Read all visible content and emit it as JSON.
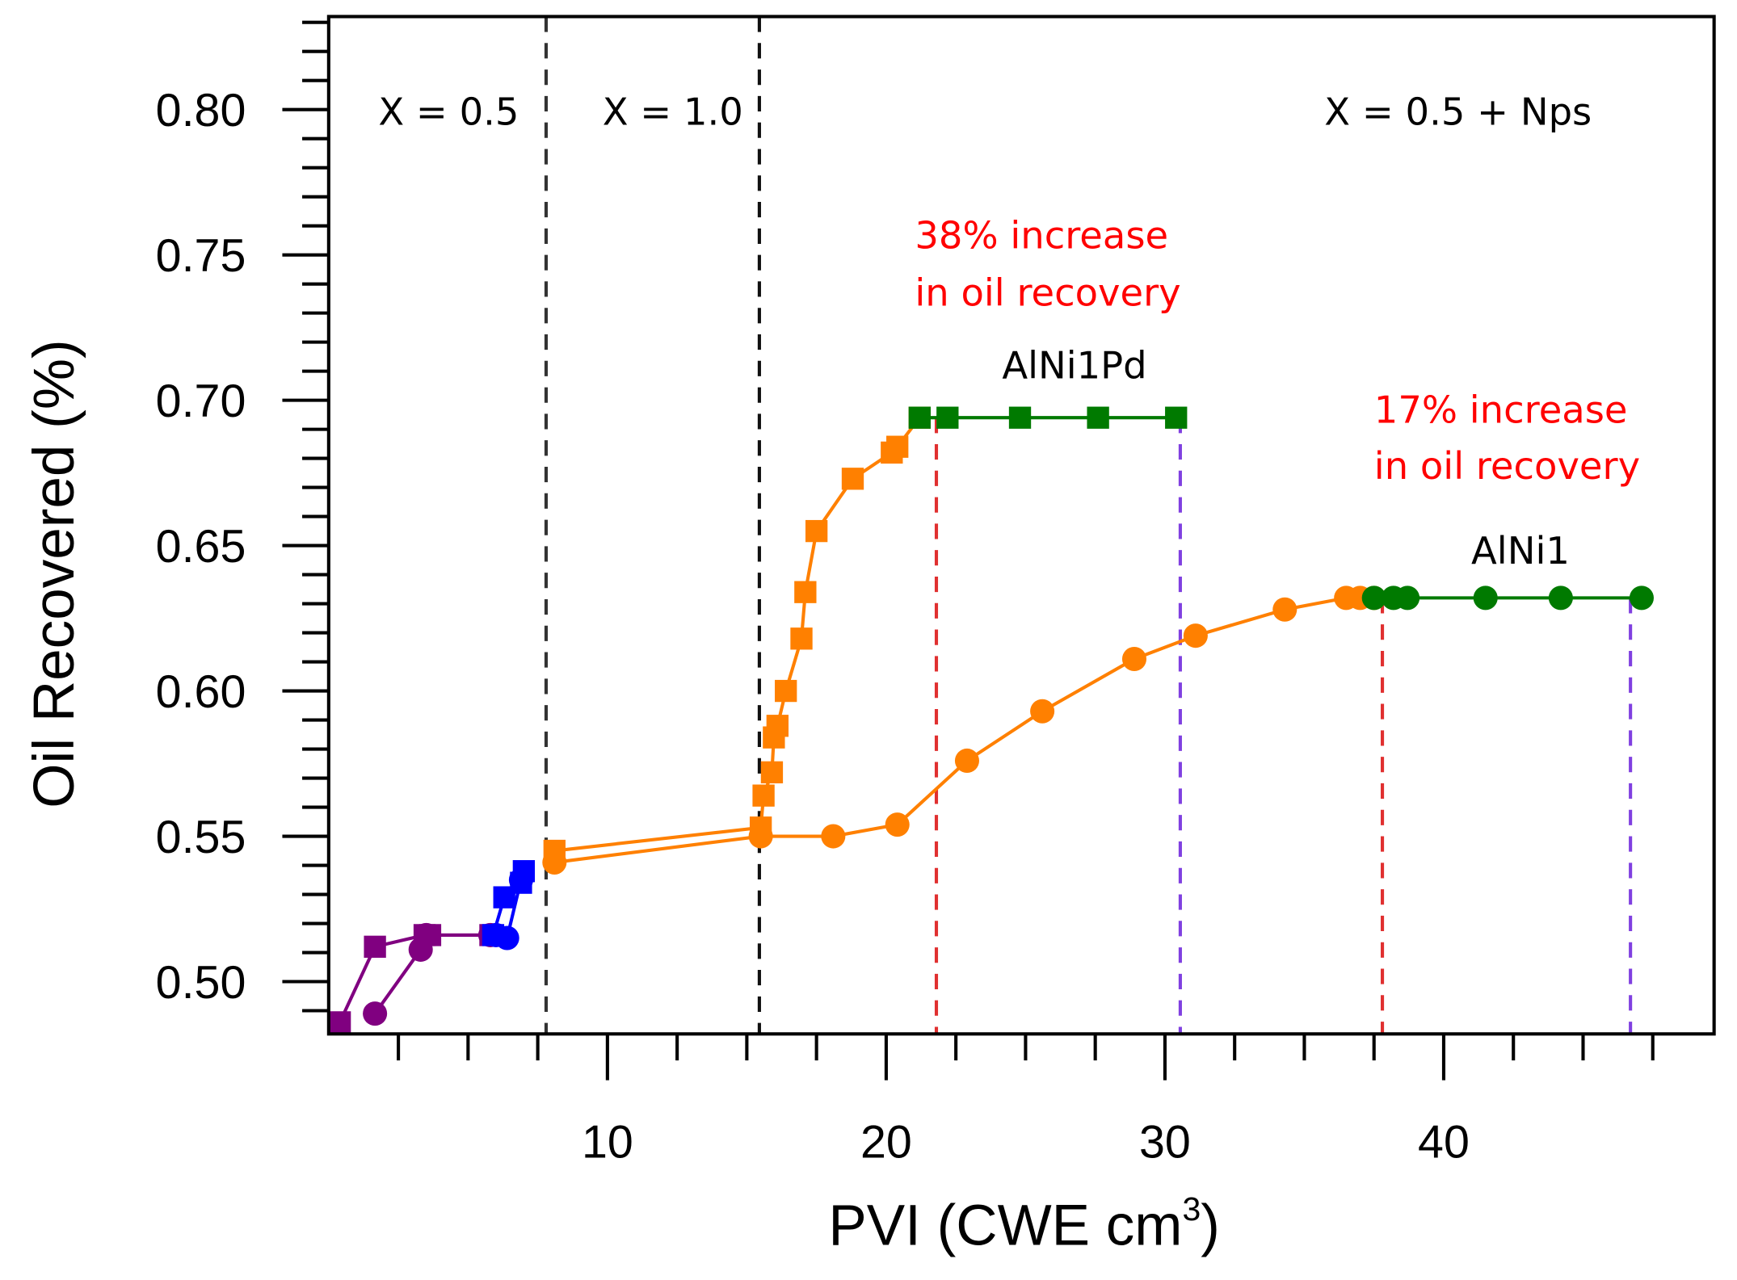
{
  "chart_data": {
    "type": "line",
    "xlabel": "PVI (CWE cm",
    "xlabel_sup": "3",
    "xlabel_close": ")",
    "ylabel": "Oil Recovered (%)",
    "xlim": [
      0,
      49.7
    ],
    "ylim": [
      0.482,
      0.832
    ],
    "xticks": [
      10,
      20,
      30,
      40
    ],
    "xtick_labels": [
      "10",
      "20",
      "30",
      "40"
    ],
    "yticks": [
      0.5,
      0.55,
      0.6,
      0.65,
      0.7,
      0.75,
      0.8
    ],
    "ytick_labels": [
      "0.50",
      "0.55",
      "0.60",
      "0.65",
      "0.70",
      "0.75",
      "0.80"
    ],
    "grid": false,
    "colors": {
      "purple": "#800080",
      "blue": "#0000ff",
      "orange": "#ff8000",
      "green": "#007a00",
      "red_text": "#ff0000",
      "red_line": "#e03030",
      "violet_line": "#8040e0"
    },
    "series": [
      {
        "marker": "square",
        "color": "#800080",
        "x": [
          0.4,
          1.66,
          3.44,
          3.64,
          5.8
        ],
        "y": [
          0.486,
          0.512,
          0.516,
          0.516,
          0.516
        ]
      },
      {
        "marker": "circle",
        "color": "#800080",
        "x": [
          1.66,
          3.3,
          3.5,
          5.8
        ],
        "y": [
          0.489,
          0.511,
          0.516,
          0.516
        ]
      },
      {
        "marker": "square",
        "color": "#0000ff",
        "x": [
          5.9,
          6.3,
          6.9,
          7.0
        ],
        "y": [
          0.516,
          0.529,
          0.534,
          0.538
        ]
      },
      {
        "marker": "circle",
        "color": "#0000ff",
        "x": [
          6.0,
          6.4,
          6.9
        ],
        "y": [
          0.516,
          0.515,
          0.535
        ]
      },
      {
        "marker": "square",
        "color": "#ff8000",
        "x": [
          8.1,
          15.5,
          15.6,
          15.9,
          15.97,
          16.1,
          16.4,
          16.96,
          17.1,
          17.5,
          18.8,
          20.2,
          20.4,
          21.2
        ],
        "y": [
          0.545,
          0.553,
          0.564,
          0.572,
          0.584,
          0.588,
          0.6,
          0.618,
          0.634,
          0.655,
          0.673,
          0.682,
          0.684,
          0.694
        ]
      },
      {
        "marker": "square",
        "color": "#007a00",
        "x": [
          21.2,
          22.2,
          24.8,
          27.6,
          30.4
        ],
        "y": [
          0.694,
          0.694,
          0.694,
          0.694,
          0.694
        ]
      },
      {
        "marker": "circle",
        "color": "#ff8000",
        "x": [
          8.1,
          15.5,
          18.1,
          20.4,
          22.9,
          25.6,
          28.9,
          31.1,
          34.3,
          36.5,
          37.0,
          37.5
        ],
        "y": [
          0.541,
          0.55,
          0.55,
          0.554,
          0.576,
          0.593,
          0.611,
          0.619,
          0.628,
          0.632,
          0.632,
          0.632
        ]
      },
      {
        "marker": "circle",
        "color": "#007a00",
        "x": [
          37.5,
          38.2,
          38.7,
          41.5,
          44.2,
          47.1
        ],
        "y": [
          0.632,
          0.632,
          0.632,
          0.632,
          0.632,
          0.632
        ]
      }
    ],
    "vlines": [
      {
        "x": 7.8,
        "color": "#333333"
      },
      {
        "x": 15.45,
        "color": "#111111"
      },
      {
        "x": 21.8,
        "color": "#e03030",
        "ymax": 0.694
      },
      {
        "x": 30.55,
        "color": "#8040e0",
        "ymax": 0.694
      },
      {
        "x": 37.8,
        "color": "#e03030",
        "ymax": 0.632
      },
      {
        "x": 46.7,
        "color": "#8040e0",
        "ymax": 0.632
      }
    ],
    "annotations": {
      "region_1": "X = 0.5",
      "region_2": "X = 1.0",
      "region_3": "X = 0.5 + Nps",
      "increase_1_line1": "38% increase",
      "increase_1_line2": "in oil recovery",
      "increase_2_line1": "17% increase",
      "increase_2_line2": "in oil recovery",
      "label_alni1pd": "AlNi1Pd",
      "label_alni1": "AlNi1"
    }
  }
}
